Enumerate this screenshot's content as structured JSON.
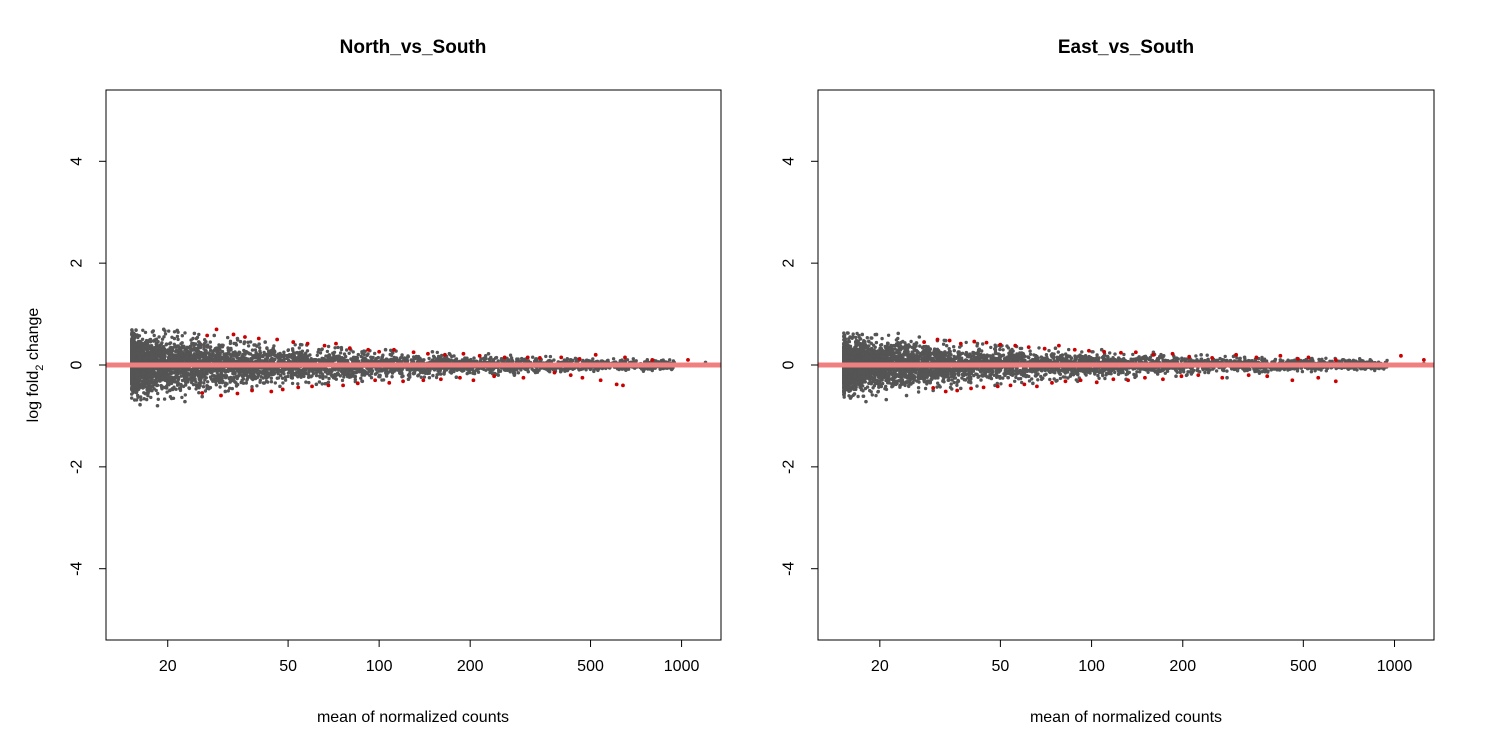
{
  "chart_data": [
    {
      "type": "scatter",
      "title": "North_vs_South",
      "xlabel": "mean of normalized counts",
      "ylabel": {
        "prefix": "log fold",
        "subscript": "2",
        "suffix": " change"
      },
      "x_scale": "log",
      "xlim": [
        12.5,
        1350
      ],
      "ylim": [
        -5.4,
        5.4
      ],
      "xticks": [
        20,
        50,
        100,
        200,
        500,
        1000
      ],
      "xtick_labels": [
        "20",
        "50",
        "100",
        "200",
        "500",
        "1000"
      ],
      "yticks": [
        -4,
        -2,
        0,
        2,
        4
      ],
      "ytick_labels": [
        "-4",
        "-2",
        "0",
        "2",
        "4"
      ],
      "reference_line": {
        "y": 0,
        "color": "#f08080"
      },
      "colors": {
        "not_significant": "#555555",
        "significant": "#cc0000"
      },
      "grid": false,
      "legend": "none",
      "series": [
        {
          "color": "#555555",
          "spread_points": [
            [
              15,
              0.6
            ],
            [
              20,
              0.58
            ],
            [
              30,
              0.48
            ],
            [
              50,
              0.36
            ],
            [
              100,
              0.26
            ],
            [
              200,
              0.19
            ],
            [
              500,
              0.12
            ],
            [
              1000,
              0.1
            ]
          ],
          "points": [
            [
              15.5,
              0.55
            ],
            [
              16.2,
              -0.78
            ],
            [
              17.8,
              0.65
            ],
            [
              18.5,
              -0.8
            ],
            [
              19.4,
              0.7
            ],
            [
              21.5,
              0.68
            ],
            [
              22.8,
              -0.72
            ],
            [
              24.5,
              0.62
            ],
            [
              26,
              -0.62
            ],
            [
              28.5,
              0.58
            ],
            [
              31,
              -0.52
            ],
            [
              34,
              0.52
            ],
            [
              38,
              -0.48
            ],
            [
              42,
              0.45
            ],
            [
              47,
              -0.42
            ],
            [
              55,
              0.4
            ],
            [
              62,
              -0.38
            ],
            [
              75,
              0.34
            ],
            [
              88,
              -0.32
            ],
            [
              105,
              0.3
            ],
            [
              125,
              -0.28
            ],
            [
              150,
              0.26
            ],
            [
              180,
              -0.24
            ],
            [
              230,
              0.22
            ],
            [
              280,
              -0.2
            ],
            [
              330,
              0.12
            ],
            [
              400,
              -0.1
            ],
            [
              450,
              0.08
            ],
            [
              520,
              0.06
            ],
            [
              560,
              -0.05
            ],
            [
              600,
              0.05
            ],
            [
              700,
              -0.02
            ],
            [
              780,
              -0.05
            ],
            [
              850,
              -0.08
            ],
            [
              1200,
              0.05
            ]
          ]
        },
        {
          "color": "#cc0000",
          "points": [
            [
              27,
              0.58
            ],
            [
              29,
              0.7
            ],
            [
              33,
              0.6
            ],
            [
              36,
              0.55
            ],
            [
              40,
              0.52
            ],
            [
              46,
              0.5
            ],
            [
              52,
              0.45
            ],
            [
              58,
              0.42
            ],
            [
              66,
              0.38
            ],
            [
              72,
              0.42
            ],
            [
              80,
              0.33
            ],
            [
              92,
              0.3
            ],
            [
              100,
              0.26
            ],
            [
              112,
              0.3
            ],
            [
              130,
              0.25
            ],
            [
              145,
              0.22
            ],
            [
              165,
              0.2
            ],
            [
              190,
              0.22
            ],
            [
              215,
              0.18
            ],
            [
              260,
              0.15
            ],
            [
              310,
              0.15
            ],
            [
              340,
              0.14
            ],
            [
              400,
              0.15
            ],
            [
              460,
              0.12
            ],
            [
              520,
              0.2
            ],
            [
              650,
              0.15
            ],
            [
              800,
              0.1
            ],
            [
              1050,
              0.1
            ],
            [
              26,
              -0.55
            ],
            [
              30,
              -0.6
            ],
            [
              34,
              -0.56
            ],
            [
              38,
              -0.5
            ],
            [
              44,
              -0.52
            ],
            [
              48,
              -0.48
            ],
            [
              54,
              -0.44
            ],
            [
              60,
              -0.42
            ],
            [
              68,
              -0.4
            ],
            [
              76,
              -0.4
            ],
            [
              85,
              -0.36
            ],
            [
              97,
              -0.3
            ],
            [
              108,
              -0.35
            ],
            [
              120,
              -0.32
            ],
            [
              140,
              -0.3
            ],
            [
              160,
              -0.28
            ],
            [
              185,
              -0.25
            ],
            [
              205,
              -0.3
            ],
            [
              240,
              -0.22
            ],
            [
              300,
              -0.25
            ],
            [
              380,
              -0.15
            ],
            [
              430,
              -0.2
            ],
            [
              470,
              -0.25
            ],
            [
              540,
              -0.3
            ],
            [
              610,
              -0.38
            ],
            [
              640,
              -0.4
            ]
          ]
        }
      ]
    },
    {
      "type": "scatter",
      "title": "East_vs_South",
      "xlabel": "mean of normalized counts",
      "ylabel": {
        "prefix": "",
        "subscript": "",
        "suffix": ""
      },
      "x_scale": "log",
      "xlim": [
        12.5,
        1350
      ],
      "ylim": [
        -5.4,
        5.4
      ],
      "xticks": [
        20,
        50,
        100,
        200,
        500,
        1000
      ],
      "xtick_labels": [
        "20",
        "50",
        "100",
        "200",
        "500",
        "1000"
      ],
      "yticks": [
        -4,
        -2,
        0,
        2,
        4
      ],
      "ytick_labels": [
        "-4",
        "-2",
        "0",
        "2",
        "4"
      ],
      "reference_line": {
        "y": 0,
        "color": "#f08080"
      },
      "colors": {
        "not_significant": "#555555",
        "significant": "#cc0000"
      },
      "grid": false,
      "legend": "none",
      "series": [
        {
          "color": "#555555",
          "spread_points": [
            [
              15,
              0.55
            ],
            [
              20,
              0.52
            ],
            [
              30,
              0.44
            ],
            [
              50,
              0.33
            ],
            [
              100,
              0.24
            ],
            [
              200,
              0.18
            ],
            [
              500,
              0.12
            ],
            [
              1000,
              0.1
            ]
          ],
          "points": [
            [
              15.3,
              0.58
            ],
            [
              16,
              -0.65
            ],
            [
              17.5,
              0.6
            ],
            [
              18,
              -0.72
            ],
            [
              19.5,
              0.6
            ],
            [
              21,
              -0.68
            ],
            [
              23,
              0.62
            ],
            [
              24.5,
              -0.6
            ],
            [
              27,
              0.55
            ],
            [
              30,
              -0.5
            ],
            [
              33,
              0.48
            ],
            [
              37,
              -0.46
            ],
            [
              42,
              0.42
            ],
            [
              48,
              -0.4
            ],
            [
              56,
              0.38
            ],
            [
              64,
              -0.36
            ],
            [
              76,
              0.33
            ],
            [
              90,
              -0.32
            ],
            [
              108,
              0.3
            ],
            [
              130,
              -0.28
            ],
            [
              160,
              0.25
            ],
            [
              190,
              -0.22
            ],
            [
              230,
              0.2
            ],
            [
              280,
              -0.25
            ],
            [
              320,
              0.15
            ],
            [
              350,
              -0.12
            ],
            [
              420,
              0.1
            ],
            [
              450,
              -0.08
            ],
            [
              520,
              0.05
            ],
            [
              600,
              -0.05
            ],
            [
              680,
              0.1
            ],
            [
              750,
              -0.02
            ],
            [
              800,
              -0.08
            ],
            [
              850,
              -0.06
            ],
            [
              1250,
              0.03
            ]
          ]
        },
        {
          "color": "#cc0000",
          "points": [
            [
              28,
              0.45
            ],
            [
              31,
              0.5
            ],
            [
              34,
              0.48
            ],
            [
              37,
              0.42
            ],
            [
              41,
              0.46
            ],
            [
              45,
              0.44
            ],
            [
              50,
              0.4
            ],
            [
              56,
              0.38
            ],
            [
              62,
              0.35
            ],
            [
              70,
              0.32
            ],
            [
              78,
              0.38
            ],
            [
              88,
              0.3
            ],
            [
              98,
              0.28
            ],
            [
              110,
              0.26
            ],
            [
              125,
              0.24
            ],
            [
              140,
              0.25
            ],
            [
              160,
              0.2
            ],
            [
              185,
              0.22
            ],
            [
              210,
              0.16
            ],
            [
              250,
              0.14
            ],
            [
              300,
              0.2
            ],
            [
              350,
              0.15
            ],
            [
              420,
              0.18
            ],
            [
              480,
              0.12
            ],
            [
              520,
              0.15
            ],
            [
              640,
              0.1
            ],
            [
              1050,
              0.18
            ],
            [
              1250,
              0.1
            ],
            [
              30,
              -0.45
            ],
            [
              33,
              -0.52
            ],
            [
              36,
              -0.5
            ],
            [
              40,
              -0.46
            ],
            [
              44,
              -0.44
            ],
            [
              49,
              -0.42
            ],
            [
              54,
              -0.4
            ],
            [
              60,
              -0.38
            ],
            [
              66,
              -0.42
            ],
            [
              74,
              -0.35
            ],
            [
              82,
              -0.32
            ],
            [
              92,
              -0.3
            ],
            [
              104,
              -0.34
            ],
            [
              118,
              -0.28
            ],
            [
              132,
              -0.3
            ],
            [
              150,
              -0.25
            ],
            [
              172,
              -0.28
            ],
            [
              198,
              -0.22
            ],
            [
              225,
              -0.2
            ],
            [
              270,
              -0.25
            ],
            [
              330,
              -0.2
            ],
            [
              380,
              -0.22
            ],
            [
              460,
              -0.3
            ],
            [
              560,
              -0.25
            ],
            [
              640,
              -0.32
            ]
          ]
        }
      ]
    }
  ]
}
